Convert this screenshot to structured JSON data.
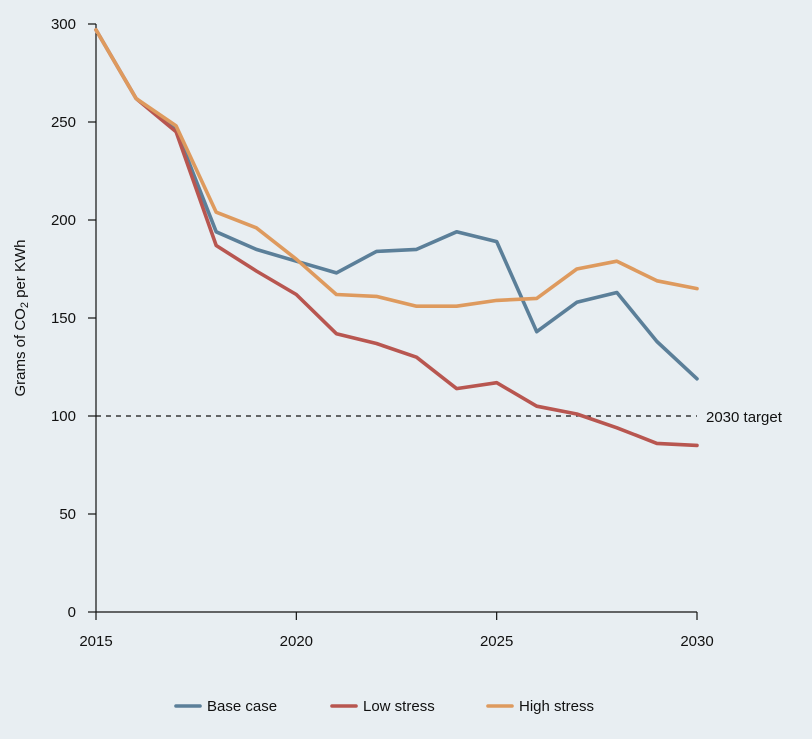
{
  "chart_data": {
    "type": "line",
    "title": "",
    "xlabel": "",
    "ylabel_prefix": "Grams of CO",
    "ylabel_sub": "2",
    "ylabel_suffix": " per KWh",
    "xlim": [
      2015,
      2030
    ],
    "ylim": [
      0,
      300
    ],
    "x_ticks": [
      2015,
      2020,
      2025,
      2030
    ],
    "y_ticks": [
      0,
      50,
      100,
      150,
      200,
      250,
      300
    ],
    "grid": false,
    "legend_position": "bottom",
    "x": [
      2015,
      2016,
      2017,
      2018,
      2019,
      2020,
      2021,
      2022,
      2023,
      2024,
      2025,
      2026,
      2027,
      2028,
      2029,
      2030
    ],
    "series": [
      {
        "name": "Base case",
        "color": "#5b7f99",
        "values": [
          297,
          262,
          246,
          194,
          185,
          179,
          173,
          184,
          185,
          194,
          189,
          143,
          158,
          163,
          138,
          119
        ]
      },
      {
        "name": "Low stress",
        "color": "#b85650",
        "values": [
          297,
          262,
          245,
          187,
          174,
          162,
          142,
          137,
          130,
          114,
          117,
          105,
          101,
          94,
          86,
          85
        ]
      },
      {
        "name": "High stress",
        "color": "#de9a5e",
        "values": [
          297,
          262,
          248,
          204,
          196,
          180,
          162,
          161,
          156,
          156,
          159,
          160,
          175,
          179,
          169,
          165
        ]
      }
    ],
    "reference_line": {
      "y": 100,
      "label": "2030 target",
      "style": "dashed"
    }
  }
}
